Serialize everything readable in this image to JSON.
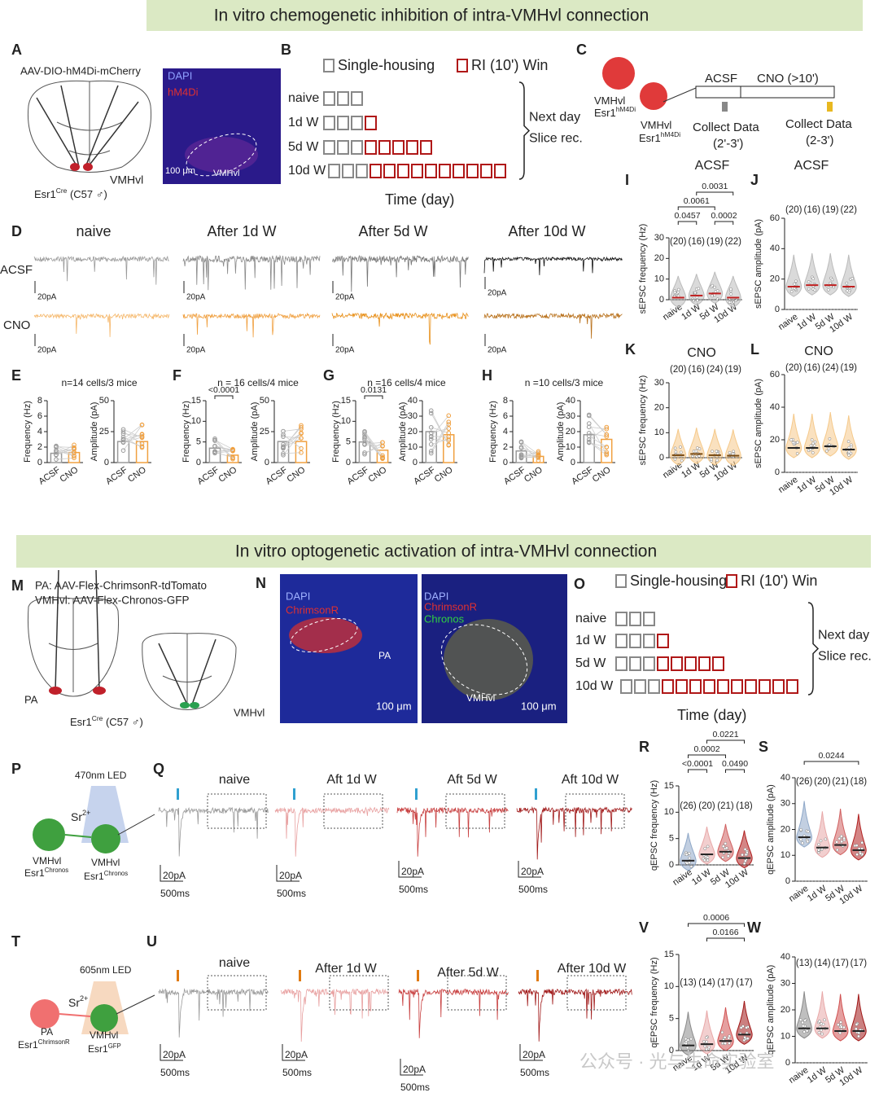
{
  "banners": [
    "In vitro chemogenetic inhibition of intra-VMHvl connection",
    "In vitro optogenetic activation of intra-VMHvl connection"
  ],
  "letters": [
    "A",
    "B",
    "C",
    "D",
    "E",
    "F",
    "G",
    "H",
    "I",
    "J",
    "K",
    "L",
    "M",
    "N",
    "O",
    "P",
    "Q",
    "R",
    "S",
    "T",
    "U",
    "V",
    "W"
  ],
  "A": {
    "virus": "AAV-DIO-hM4Di-mCherry",
    "region": "VMHvl",
    "mouse": [
      "Esr1",
      "Cre",
      " (C57 ♂)"
    ],
    "stains": [
      "DAPI",
      "hM4Di"
    ],
    "scale": "100 μm",
    "roi": "VMHvl"
  },
  "B": {
    "legend": [
      "Single-housing",
      "RI (10') Win"
    ],
    "rows": [
      {
        "label": "naive",
        "housing": 3,
        "win": 0
      },
      {
        "label": "1d W",
        "housing": 3,
        "win": 1
      },
      {
        "label": "5d W",
        "housing": 3,
        "win": 5
      },
      {
        "label": "10d W",
        "housing": 3,
        "win": 10
      }
    ],
    "brace": [
      "Next day",
      "Slice rec."
    ],
    "xlabel": "Time (day)"
  },
  "C": {
    "cells": [
      [
        "VMHvl",
        "Esr1",
        "hM4Di"
      ],
      [
        "VMHvl",
        "Esr1",
        "hM4Di"
      ]
    ],
    "protocol": [
      "ACSF",
      "CNO (>10')"
    ],
    "collect": [
      [
        "Collect Data",
        "(2'-3')"
      ],
      [
        "Collect Data",
        "(2-3')"
      ]
    ]
  },
  "D": {
    "columns": [
      "naive",
      "After 1d W",
      "After 5d W",
      "After 10d W"
    ],
    "rows": [
      "ACSF",
      "CNO"
    ],
    "scale": "20pA"
  },
  "E": {
    "n": "n=14 cells/3 mice",
    "plots": [
      {
        "ylabel": "Frequency (Hz)",
        "yticks": [
          0,
          2,
          4,
          6,
          8
        ],
        "categories": [
          "ACSF",
          "CNO"
        ],
        "means": [
          1.2,
          1.3
        ],
        "colors": [
          "#9a9a9a",
          "#f0a040"
        ],
        "p": []
      },
      {
        "ylabel": "Amplitude (pA)",
        "yticks": [
          0,
          25,
          50
        ],
        "categories": [
          "ACSF",
          "CNO"
        ],
        "means": [
          17,
          17
        ],
        "colors": [
          "#9a9a9a",
          "#f0a040"
        ],
        "p": []
      }
    ]
  },
  "F": {
    "n": "n = 16 cells/4 mice",
    "plots": [
      {
        "ylabel": "Frequency (Hz)",
        "yticks": [
          0,
          5,
          10,
          15
        ],
        "categories": [
          "ACSF",
          "CNO"
        ],
        "means": [
          3.5,
          1.8
        ],
        "colors": [
          "#9a9a9a",
          "#f0a040"
        ],
        "p": [
          "<0.0001"
        ]
      },
      {
        "ylabel": "Amplitude (pA)",
        "yticks": [
          0,
          25,
          50
        ],
        "categories": [
          "ACSF",
          "CNO"
        ],
        "means": [
          17,
          17
        ],
        "colors": [
          "#9a9a9a",
          "#f0a040"
        ],
        "p": []
      }
    ]
  },
  "G": {
    "n": "n =16 cells/4 mice",
    "plots": [
      {
        "ylabel": "Frequency (Hz)",
        "yticks": [
          0,
          5,
          10,
          15
        ],
        "categories": [
          "ACSF",
          "CNO"
        ],
        "means": [
          5,
          3
        ],
        "colors": [
          "#9a9a9a",
          "#f0a040"
        ],
        "p": [
          "0.0131"
        ]
      },
      {
        "ylabel": "Amplitude (pA)",
        "yticks": [
          0,
          10,
          20,
          30,
          40
        ],
        "categories": [
          "ACSF",
          "CNO"
        ],
        "means": [
          20,
          18
        ],
        "colors": [
          "#9a9a9a",
          "#f0a040"
        ],
        "p": []
      }
    ]
  },
  "H": {
    "n": "n =10 cells/3 mice",
    "plots": [
      {
        "ylabel": "Frequency (Hz)",
        "yticks": [
          0,
          2,
          4,
          6,
          8
        ],
        "categories": [
          "ACSF",
          "CNO"
        ],
        "means": [
          1.5,
          0.8
        ],
        "colors": [
          "#9a9a9a",
          "#f0a040"
        ],
        "p": []
      },
      {
        "ylabel": "Amplitude (pA)",
        "yticks": [
          0,
          10,
          20,
          30,
          40
        ],
        "categories": [
          "ACSF",
          "CNO"
        ],
        "means": [
          18,
          15
        ],
        "colors": [
          "#9a9a9a",
          "#f0a040"
        ],
        "p": []
      }
    ]
  },
  "I": {
    "condition": "ACSF",
    "ylabel": "sEPSC frequency (Hz)",
    "yticks": [
      0,
      10,
      20,
      30
    ],
    "categories": [
      "naive",
      "1d W",
      "5d W",
      "10d W"
    ],
    "n": [
      "(20)",
      "(16)",
      "(19)",
      "(22)"
    ],
    "medians": [
      1,
      2,
      3,
      1
    ],
    "colors": [
      "#bbbbbb",
      "#bbbbbb",
      "#bbbbbb",
      "#bbbbbb"
    ],
    "p": [
      "0.0031",
      "0.0061",
      "0.0457",
      "0.0002"
    ]
  },
  "J": {
    "condition": "ACSF",
    "ylabel": "sEPSC amplitude (pA)",
    "yticks": [
      0,
      20,
      40,
      60
    ],
    "categories": [
      "naive",
      "1d W",
      "5d W",
      "10d W"
    ],
    "n": [
      "(20)",
      "(16)",
      "(19)",
      "(22)"
    ],
    "medians": [
      15,
      16,
      16,
      15
    ],
    "colors": [
      "#bbbbbb",
      "#bbbbbb",
      "#bbbbbb",
      "#bbbbbb"
    ],
    "p": []
  },
  "K": {
    "condition": "CNO",
    "ylabel": "sEPSC frequency (Hz)",
    "yticks": [
      0,
      10,
      20,
      30
    ],
    "categories": [
      "naive",
      "1d W",
      "5d W",
      "10d W"
    ],
    "n": [
      "(20)",
      "(16)",
      "(24)",
      "(19)"
    ],
    "medians": [
      1,
      1.5,
      1,
      0.8
    ],
    "colors": [
      "#f5c98a",
      "#f5c98a",
      "#f5c98a",
      "#f5c98a"
    ],
    "p": []
  },
  "L": {
    "condition": "CNO",
    "ylabel": "sEPSC amplitude (pA)",
    "yticks": [
      0,
      20,
      40,
      60
    ],
    "categories": [
      "naive",
      "1d W",
      "5d W",
      "10d W"
    ],
    "n": [
      "(20)",
      "(16)",
      "(24)",
      "(19)"
    ],
    "medians": [
      15,
      15,
      16,
      14
    ],
    "colors": [
      "#f5c98a",
      "#f5c98a",
      "#f5c98a",
      "#f5c98a"
    ],
    "p": []
  },
  "M": {
    "viruses": [
      "PA: AAV-Flex-ChrimsonR-tdTomato",
      "VMHvl: AAV-Flex-Chronos-GFP"
    ],
    "regions": [
      "PA",
      "VMHvl"
    ],
    "mouse": [
      "Esr1",
      "Cre",
      " (C57 ♂)"
    ]
  },
  "N": {
    "left": [
      "DAPI",
      "ChrimsonR",
      "PA",
      "100 μm"
    ],
    "right": [
      "DAPI",
      "ChrimsonR",
      "Chronos",
      "VMHvl",
      "100 μm"
    ]
  },
  "O": {
    "legend": [
      "Single-housing",
      "RI (10') Win"
    ],
    "rows": [
      {
        "label": "naive",
        "housing": 3,
        "win": 0
      },
      {
        "label": "1d W",
        "housing": 3,
        "win": 1
      },
      {
        "label": "5d W",
        "housing": 3,
        "win": 5
      },
      {
        "label": "10d W",
        "housing": 3,
        "win": 10
      }
    ],
    "brace": [
      "Next day",
      "Slice rec."
    ],
    "xlabel": "Time (day)"
  },
  "P": {
    "led": "470nm LED",
    "ion": [
      "Sr",
      "2+"
    ],
    "cells": [
      [
        "VMHvl",
        "Esr1",
        "Chronos"
      ],
      [
        "VMHvl",
        "Esr1",
        "Chronos"
      ]
    ]
  },
  "Q": {
    "columns": [
      "naive",
      "Aft 1d W",
      "Aft 5d W",
      "Aft 10d W"
    ],
    "scale": [
      "20pA",
      "500ms"
    ]
  },
  "R": {
    "ylabel": "qEPSC frequency (Hz)",
    "yticks": [
      0,
      5,
      10,
      15
    ],
    "categories": [
      "naive",
      "1d W",
      "5d W",
      "10d W"
    ],
    "n": [
      "(26)",
      "(20)",
      "(21)",
      "(18)"
    ],
    "medians": [
      0.8,
      2,
      2.5,
      1.3
    ],
    "colors": [
      "#8fa8c8",
      "#e8a8a8",
      "#d06060",
      "#b02020"
    ],
    "p": [
      "0.0221",
      "0.0002",
      "<0.0001",
      "0.0490"
    ]
  },
  "S": {
    "ylabel": "qEPSC amplitude (pA)",
    "yticks": [
      0,
      10,
      20,
      30,
      40
    ],
    "categories": [
      "naive",
      "1d W",
      "5d W",
      "10d W"
    ],
    "n": [
      "(26)",
      "(20)",
      "(21)",
      "(18)"
    ],
    "medians": [
      17,
      13,
      14,
      12
    ],
    "colors": [
      "#8fa8c8",
      "#e8a8a8",
      "#d06060",
      "#b02020"
    ],
    "p": [
      "0.0244"
    ]
  },
  "T": {
    "led": "605nm LED",
    "ion": [
      "Sr",
      "2+"
    ],
    "cells": [
      [
        "PA",
        "Esr1",
        "ChrimsonR"
      ],
      [
        "VMHvl",
        "Esr1",
        "GFP"
      ]
    ]
  },
  "U": {
    "columns": [
      "naive",
      "After 1d W",
      "After 5d W",
      "After 10d W"
    ],
    "scale": [
      "20pA",
      "500ms"
    ]
  },
  "V": {
    "ylabel": "qEPSC frequency (Hz)",
    "yticks": [
      0,
      5,
      10,
      15
    ],
    "categories": [
      "naive",
      "1d W",
      "5d W",
      "10d W"
    ],
    "n": [
      "(13)",
      "(14)",
      "(17)",
      "(17)"
    ],
    "medians": [
      0.8,
      1,
      1.5,
      2.5
    ],
    "colors": [
      "#8a8a8a",
      "#e8a8a8",
      "#d05050",
      "#a01818"
    ],
    "p": [
      "0.0006",
      "0.0166"
    ]
  },
  "W": {
    "ylabel": "qEPSC amplitude (pA)",
    "yticks": [
      0,
      10,
      20,
      30,
      40
    ],
    "categories": [
      "naive",
      "1d W",
      "5d W",
      "10d W"
    ],
    "n": [
      "(13)",
      "(14)",
      "(17)",
      "(17)"
    ],
    "medians": [
      13,
      13,
      12,
      12
    ],
    "colors": [
      "#8a8a8a",
      "#e8a8a8",
      "#d05050",
      "#a01818"
    ],
    "p": []
  },
  "watermark": "公众号 · 光与生命实验室"
}
